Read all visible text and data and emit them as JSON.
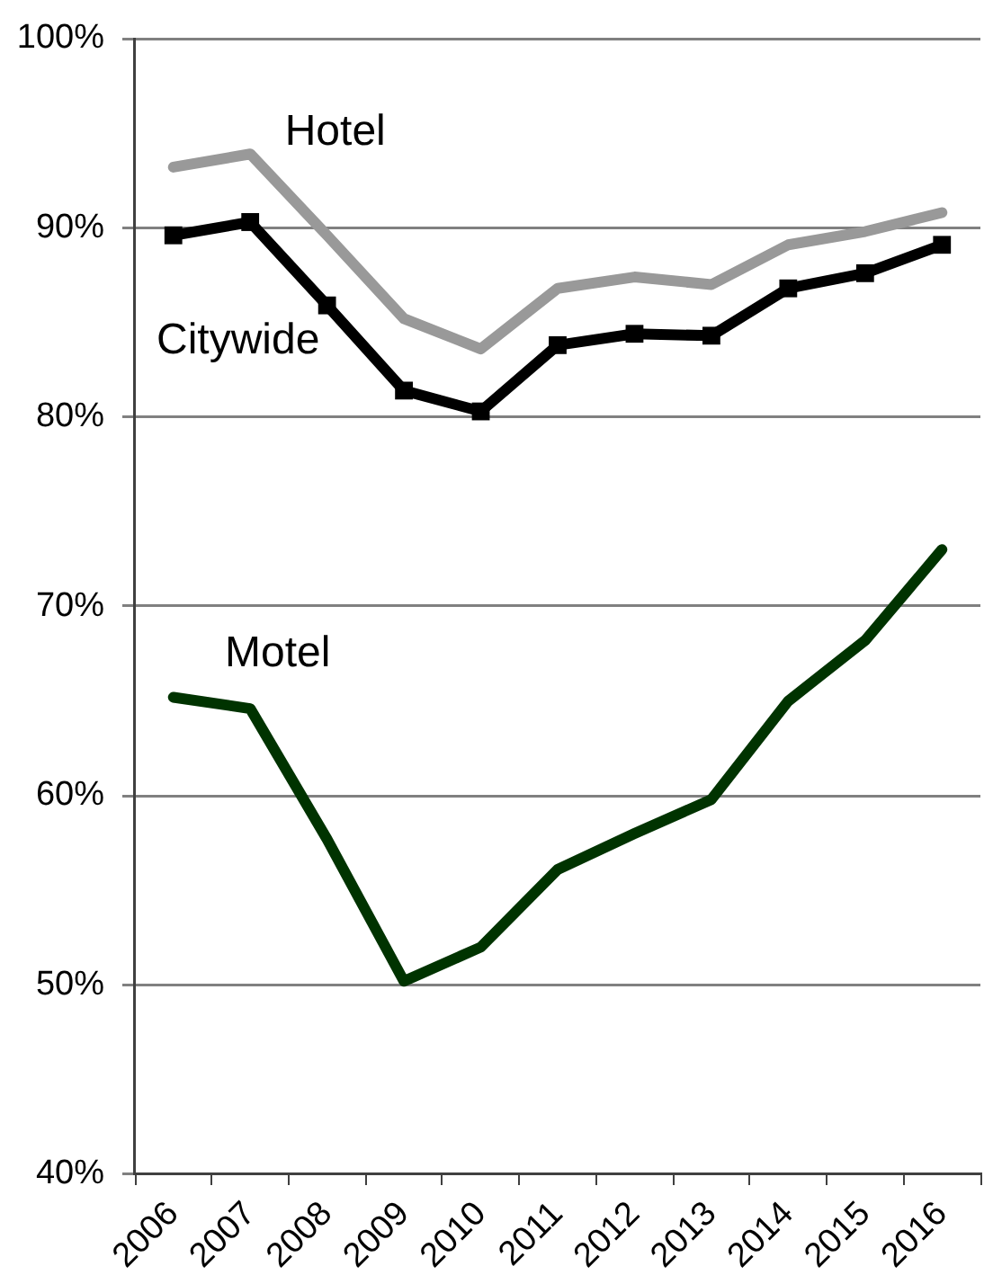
{
  "chart_data": {
    "type": "line",
    "categories": [
      "2006",
      "2007",
      "2008",
      "2009",
      "2010",
      "2011",
      "2012",
      "2013",
      "2014",
      "2015",
      "2016"
    ],
    "series": [
      {
        "name": "Hotel",
        "color": "#999999",
        "marker": "none",
        "values": [
          93.2,
          93.9,
          89.6,
          85.2,
          83.6,
          86.8,
          87.4,
          87.0,
          89.1,
          89.8,
          90.8
        ]
      },
      {
        "name": "Citywide",
        "color": "#000000",
        "marker": "square",
        "values": [
          89.6,
          90.3,
          85.9,
          81.4,
          80.3,
          83.8,
          84.4,
          84.3,
          86.8,
          87.6,
          89.1
        ]
      },
      {
        "name": "Motel",
        "color": "#003300",
        "marker": "none",
        "values": [
          65.2,
          64.6,
          57.7,
          50.2,
          52.0,
          56.1,
          58.0,
          59.8,
          65.0,
          68.2,
          73.0
        ]
      }
    ],
    "ylim": [
      40,
      100
    ],
    "yticks": [
      {
        "value": 40,
        "label": "40%"
      },
      {
        "value": 50,
        "label": "50%"
      },
      {
        "value": 60,
        "label": "60%"
      },
      {
        "value": 70,
        "label": "70%"
      },
      {
        "value": 80,
        "label": "80%"
      },
      {
        "value": 90,
        "label": "90%"
      },
      {
        "value": 100,
        "label": "100%"
      }
    ],
    "grid": "y",
    "legend": false,
    "line_style": "solid"
  }
}
